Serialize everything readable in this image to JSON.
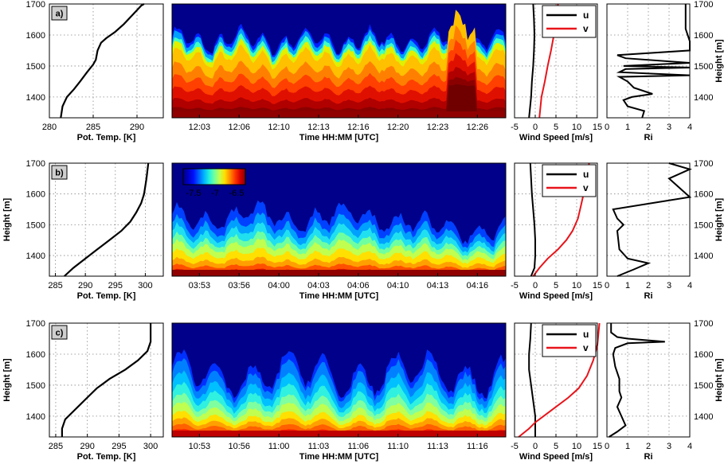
{
  "colors": {
    "u": "#000000",
    "v": "#e8141b",
    "grid": "#999999"
  },
  "colorbar": {
    "ticks": [
      "-7.5",
      "-7",
      "-6.5"
    ]
  },
  "panels": [
    {
      "label": "a)",
      "height_label": "Height [m]",
      "height_ticks": [
        1400,
        1500,
        1600,
        1700
      ],
      "temp": {
        "xlabel": "Pot. Temp. [K]",
        "xlim": [
          280,
          293
        ],
        "ticks": [
          280,
          285,
          290
        ],
        "profile": [
          [
            281.3,
            1333
          ],
          [
            281.5,
            1370
          ],
          [
            282,
            1400
          ],
          [
            282.8,
            1425
          ],
          [
            283.5,
            1450
          ],
          [
            284.3,
            1480
          ],
          [
            285,
            1505
          ],
          [
            285.3,
            1520
          ],
          [
            285.5,
            1550
          ],
          [
            285.9,
            1575
          ],
          [
            286.5,
            1590
          ],
          [
            287.5,
            1610
          ],
          [
            288.5,
            1635
          ],
          [
            289.5,
            1665
          ],
          [
            290.5,
            1695
          ],
          [
            290.8,
            1700
          ]
        ]
      },
      "contour": {
        "xlabel": "Time HH:MM [UTC]",
        "times": [
          "12:03",
          "12:06",
          "12:10",
          "12:13",
          "12:16",
          "12:20",
          "12:23",
          "12:26"
        ]
      },
      "wind": {
        "xlabel": "Wind Speed [m/s]",
        "xlim": [
          -5,
          15
        ],
        "ticks": [
          -5,
          0,
          5,
          10,
          15
        ],
        "u": [
          [
            -1.5,
            1333
          ],
          [
            -1,
            1400
          ],
          [
            -0.8,
            1450
          ],
          [
            -0.5,
            1500
          ],
          [
            -0.3,
            1550
          ],
          [
            -0.2,
            1600
          ],
          [
            -0.3,
            1650
          ],
          [
            -0.5,
            1700
          ]
        ],
        "v": [
          [
            1,
            1333
          ],
          [
            1.5,
            1400
          ],
          [
            2.3,
            1450
          ],
          [
            3,
            1500
          ],
          [
            3.8,
            1550
          ],
          [
            4.5,
            1600
          ],
          [
            5,
            1650
          ],
          [
            5.5,
            1700
          ]
        ]
      },
      "ri": {
        "xlabel": "Ri",
        "xlim": [
          0,
          4
        ],
        "ticks": [
          0,
          1,
          2,
          3,
          4
        ],
        "profile": [
          [
            1.7,
            1333
          ],
          [
            1.8,
            1355
          ],
          [
            1,
            1370
          ],
          [
            0.8,
            1390
          ],
          [
            1.2,
            1400
          ],
          [
            2.2,
            1410
          ],
          [
            1.3,
            1430
          ],
          [
            1,
            1450
          ],
          [
            0.6,
            1465
          ],
          [
            4,
            1470
          ],
          [
            0.6,
            1480
          ],
          [
            0.9,
            1490
          ],
          [
            4,
            1495
          ],
          [
            0.8,
            1500
          ],
          [
            4,
            1510
          ],
          [
            0.9,
            1525
          ],
          [
            0.5,
            1535
          ],
          [
            4,
            1550
          ],
          [
            4,
            1580
          ],
          [
            3.8,
            1620
          ],
          [
            3.8,
            1700
          ]
        ]
      }
    },
    {
      "label": "b)",
      "height_label": "Height [m]",
      "height_ticks": [
        1400,
        1500,
        1600,
        1700
      ],
      "temp": {
        "xlabel": "Pot. Temp. [K]",
        "xlim": [
          284,
          303
        ],
        "ticks": [
          285,
          290,
          295,
          300
        ],
        "profile": [
          [
            286.5,
            1333
          ],
          [
            288,
            1360
          ],
          [
            290,
            1390
          ],
          [
            292,
            1420
          ],
          [
            294,
            1450
          ],
          [
            296,
            1480
          ],
          [
            297.5,
            1510
          ],
          [
            298.5,
            1540
          ],
          [
            299.3,
            1570
          ],
          [
            299.8,
            1600
          ],
          [
            300.2,
            1650
          ],
          [
            300.5,
            1700
          ]
        ]
      },
      "contour": {
        "xlabel": "Time HH:MM [UTC]",
        "times": [
          "03:53",
          "03:56",
          "04:00",
          "04:03",
          "04:06",
          "04:10",
          "04:13",
          "04:16"
        ]
      },
      "wind": {
        "xlabel": "Wind Speed [m/s]",
        "xlim": [
          -5,
          15
        ],
        "ticks": [
          -5,
          0,
          5,
          10,
          15
        ],
        "u": [
          [
            -1,
            1333
          ],
          [
            -0.2,
            1360
          ],
          [
            0,
            1400
          ],
          [
            0,
            1450
          ],
          [
            -0.2,
            1500
          ],
          [
            -0.5,
            1550
          ],
          [
            -0.8,
            1600
          ],
          [
            -1,
            1650
          ],
          [
            -1.2,
            1700
          ]
        ],
        "v": [
          [
            -0.5,
            1333
          ],
          [
            1,
            1360
          ],
          [
            3,
            1390
          ],
          [
            5.5,
            1420
          ],
          [
            7.5,
            1450
          ],
          [
            9,
            1480
          ],
          [
            10.3,
            1520
          ],
          [
            11,
            1560
          ],
          [
            12,
            1620
          ],
          [
            12.5,
            1650
          ],
          [
            13,
            1700
          ]
        ]
      },
      "ri": {
        "xlabel": "Ri",
        "xlim": [
          0,
          4
        ],
        "ticks": [
          0,
          1,
          2,
          3,
          4
        ],
        "profile": [
          [
            0.5,
            1333
          ],
          [
            1.3,
            1355
          ],
          [
            2,
            1375
          ],
          [
            1,
            1390
          ],
          [
            0.6,
            1420
          ],
          [
            0.5,
            1480
          ],
          [
            0.8,
            1500
          ],
          [
            0.5,
            1520
          ],
          [
            0.3,
            1550
          ],
          [
            4,
            1590
          ],
          [
            3,
            1650
          ],
          [
            4,
            1680
          ],
          [
            3,
            1700
          ]
        ]
      }
    },
    {
      "label": "c)",
      "height_label": "Height [m]",
      "height_ticks": [
        1400,
        1500,
        1600,
        1700
      ],
      "temp": {
        "xlabel": "Pot. Temp. [K]",
        "xlim": [
          284,
          302
        ],
        "ticks": [
          285,
          290,
          295,
          300
        ],
        "profile": [
          [
            286,
            1333
          ],
          [
            286,
            1360
          ],
          [
            286.5,
            1390
          ],
          [
            288,
            1420
          ],
          [
            289.5,
            1450
          ],
          [
            290.5,
            1470
          ],
          [
            291.5,
            1490
          ],
          [
            293.5,
            1520
          ],
          [
            296,
            1550
          ],
          [
            298,
            1580
          ],
          [
            299.5,
            1610
          ],
          [
            300,
            1640
          ],
          [
            300,
            1700
          ]
        ]
      },
      "contour": {
        "xlabel": "Time HH:MM [UTC]",
        "times": [
          "10:53",
          "10:56",
          "11:00",
          "11:03",
          "11:06",
          "11:10",
          "11:13",
          "11:16"
        ]
      },
      "wind": {
        "xlabel": "Wind Speed [m/s]",
        "xlim": [
          -5,
          15
        ],
        "ticks": [
          -5,
          0,
          5,
          10,
          15
        ],
        "u": [
          [
            0,
            1333
          ],
          [
            0,
            1400
          ],
          [
            -0.5,
            1450
          ],
          [
            -1,
            1500
          ],
          [
            -1.5,
            1550
          ],
          [
            -1.5,
            1600
          ],
          [
            -1.2,
            1650
          ],
          [
            -1,
            1700
          ]
        ],
        "v": [
          [
            -4,
            1333
          ],
          [
            -1.5,
            1360
          ],
          [
            0,
            1380
          ],
          [
            2,
            1400
          ],
          [
            5,
            1430
          ],
          [
            8,
            1460
          ],
          [
            10.5,
            1490
          ],
          [
            12.5,
            1530
          ],
          [
            14,
            1580
          ],
          [
            15,
            1630
          ],
          [
            15.5,
            1700
          ]
        ]
      },
      "ri": {
        "xlabel": "Ri",
        "xlim": [
          0,
          4
        ],
        "ticks": [
          0,
          1,
          2,
          3,
          4
        ],
        "profile": [
          [
            0.1,
            1333
          ],
          [
            0.5,
            1350
          ],
          [
            0.9,
            1370
          ],
          [
            0.7,
            1400
          ],
          [
            0.5,
            1430
          ],
          [
            0.7,
            1460
          ],
          [
            0.6,
            1480
          ],
          [
            0.6,
            1520
          ],
          [
            0.4,
            1560
          ],
          [
            0.3,
            1600
          ],
          [
            0.4,
            1620
          ],
          [
            1,
            1635
          ],
          [
            2.8,
            1640
          ],
          [
            1,
            1650
          ],
          [
            0.5,
            1655
          ],
          [
            0.2,
            1670
          ],
          [
            0.2,
            1700
          ]
        ]
      }
    }
  ],
  "legend": {
    "u_label": "u",
    "v_label": "v"
  }
}
